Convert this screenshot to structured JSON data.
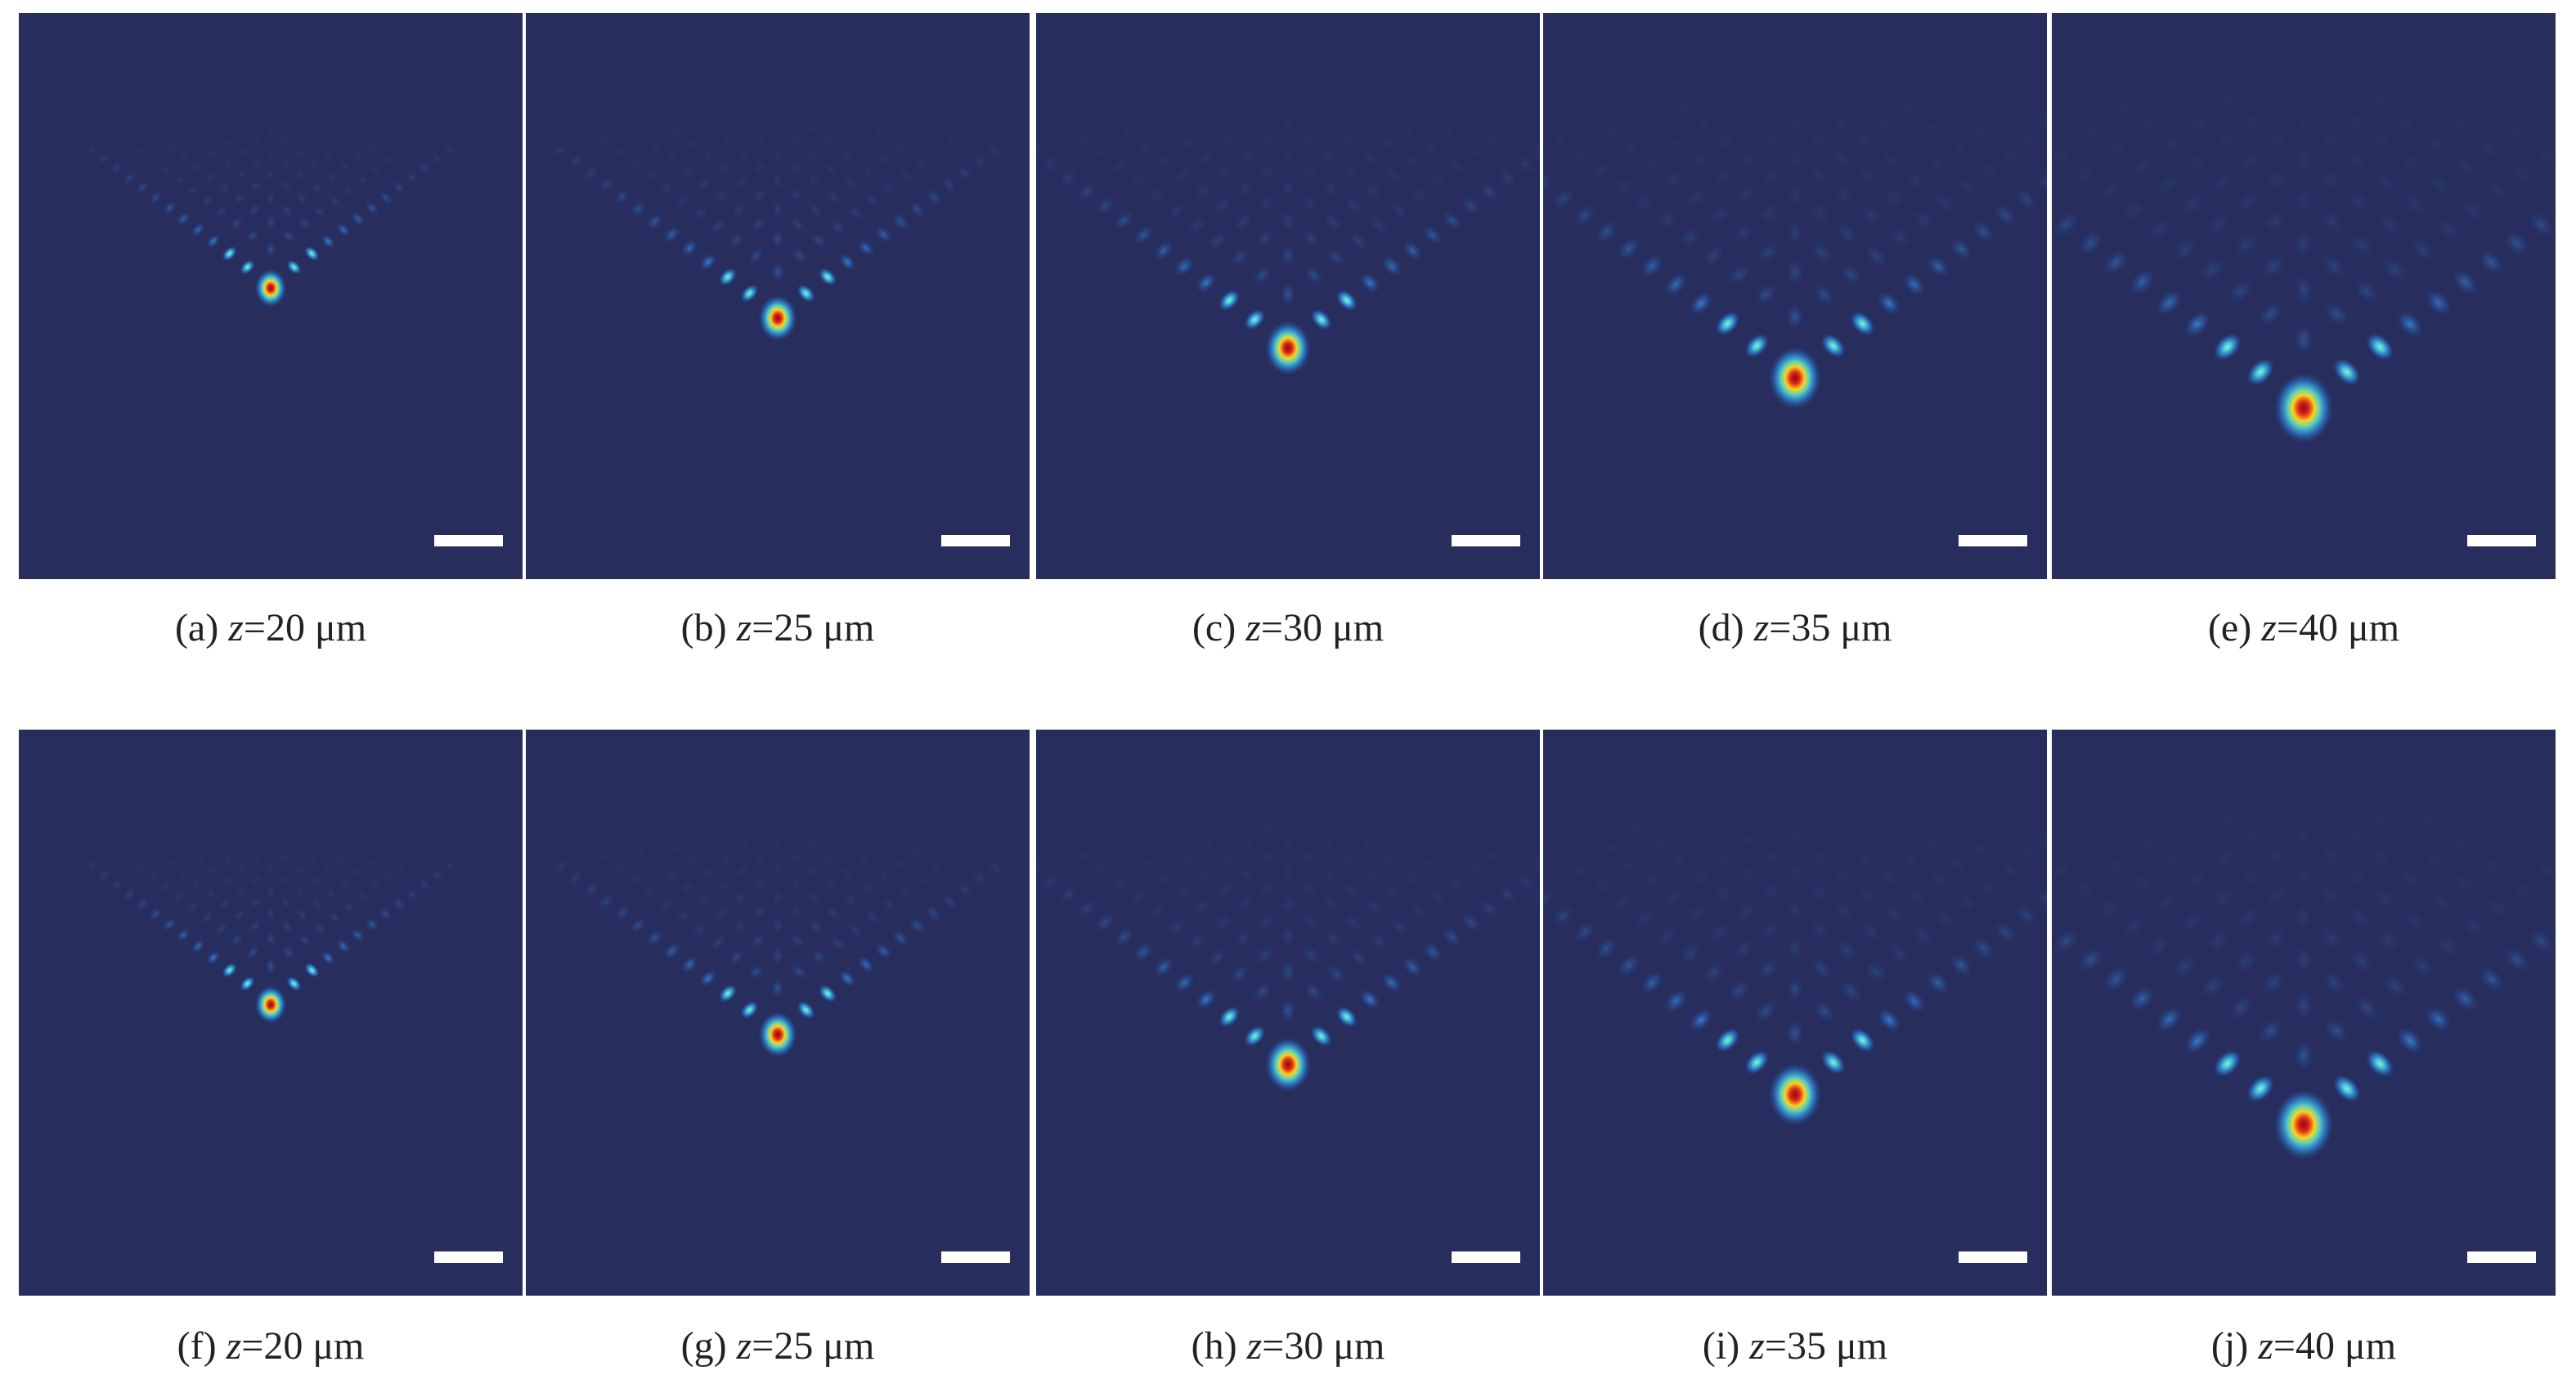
{
  "panels": [
    {
      "tag": "(a)",
      "variable": "z",
      "value": "=20 μm"
    },
    {
      "tag": "(b)",
      "variable": "z",
      "value": "=25 μm"
    },
    {
      "tag": "(c)",
      "variable": "z",
      "value": "=30 μm"
    },
    {
      "tag": "(d)",
      "variable": "z",
      "value": "=35 μm"
    },
    {
      "tag": "(e)",
      "variable": "z",
      "value": "=40 μm"
    },
    {
      "tag": "(f)",
      "variable": "z",
      "value": "=20 μm"
    },
    {
      "tag": "(g)",
      "variable": "z",
      "value": "=25 μm"
    },
    {
      "tag": "(h)",
      "variable": "z",
      "value": "=30 μm"
    },
    {
      "tag": "(i)",
      "variable": "z",
      "value": "=35 μm"
    },
    {
      "tag": "(j)",
      "variable": "z",
      "value": "=40 μm"
    }
  ]
}
